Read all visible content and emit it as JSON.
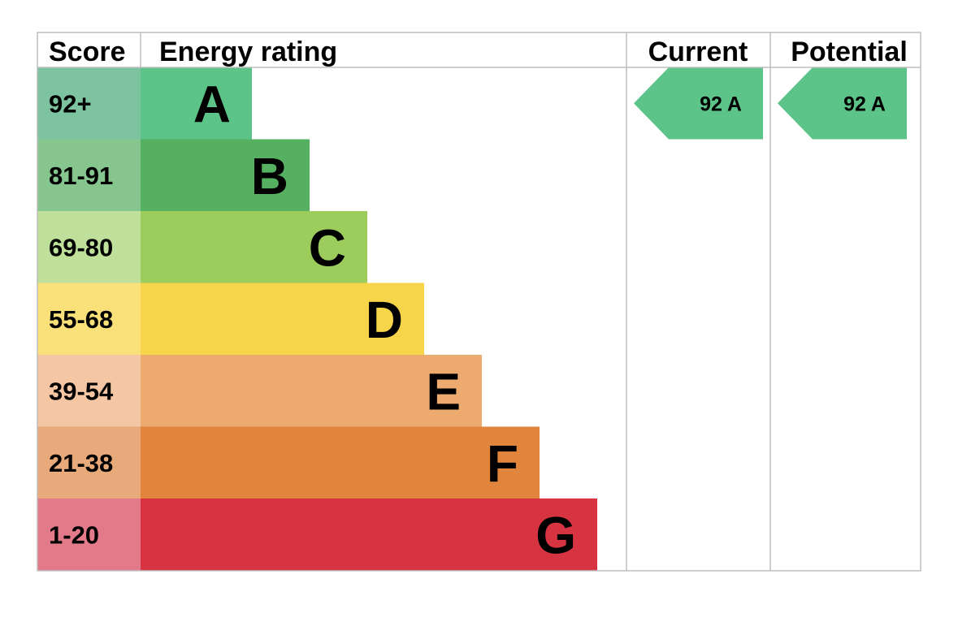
{
  "headers": {
    "score": "Score",
    "rating": "Energy rating",
    "current": "Current",
    "potential": "Potential"
  },
  "chart_data": {
    "type": "bar",
    "categories": [
      "A",
      "B",
      "C",
      "D",
      "E",
      "F",
      "G"
    ],
    "score_ranges": [
      "92+",
      "81-91",
      "69-80",
      "55-68",
      "39-54",
      "21-38",
      "1-20"
    ],
    "bar_colors": [
      "#5cc489",
      "#55b062",
      "#9ccd5c",
      "#f7d54a",
      "#eeab70",
      "#e0853b",
      "#d73341"
    ],
    "score_colors": [
      "#7dc3a0",
      "#86c58e",
      "#bfe09a",
      "#f9e079",
      "#f4c6a4",
      "#e8aa7a",
      "#e37a89"
    ],
    "current": {
      "value": "92",
      "band": "A",
      "label": "92  A",
      "color": "#5cc489"
    },
    "potential": {
      "value": "92",
      "band": "A",
      "label": "92  A",
      "color": "#5cc489"
    }
  }
}
